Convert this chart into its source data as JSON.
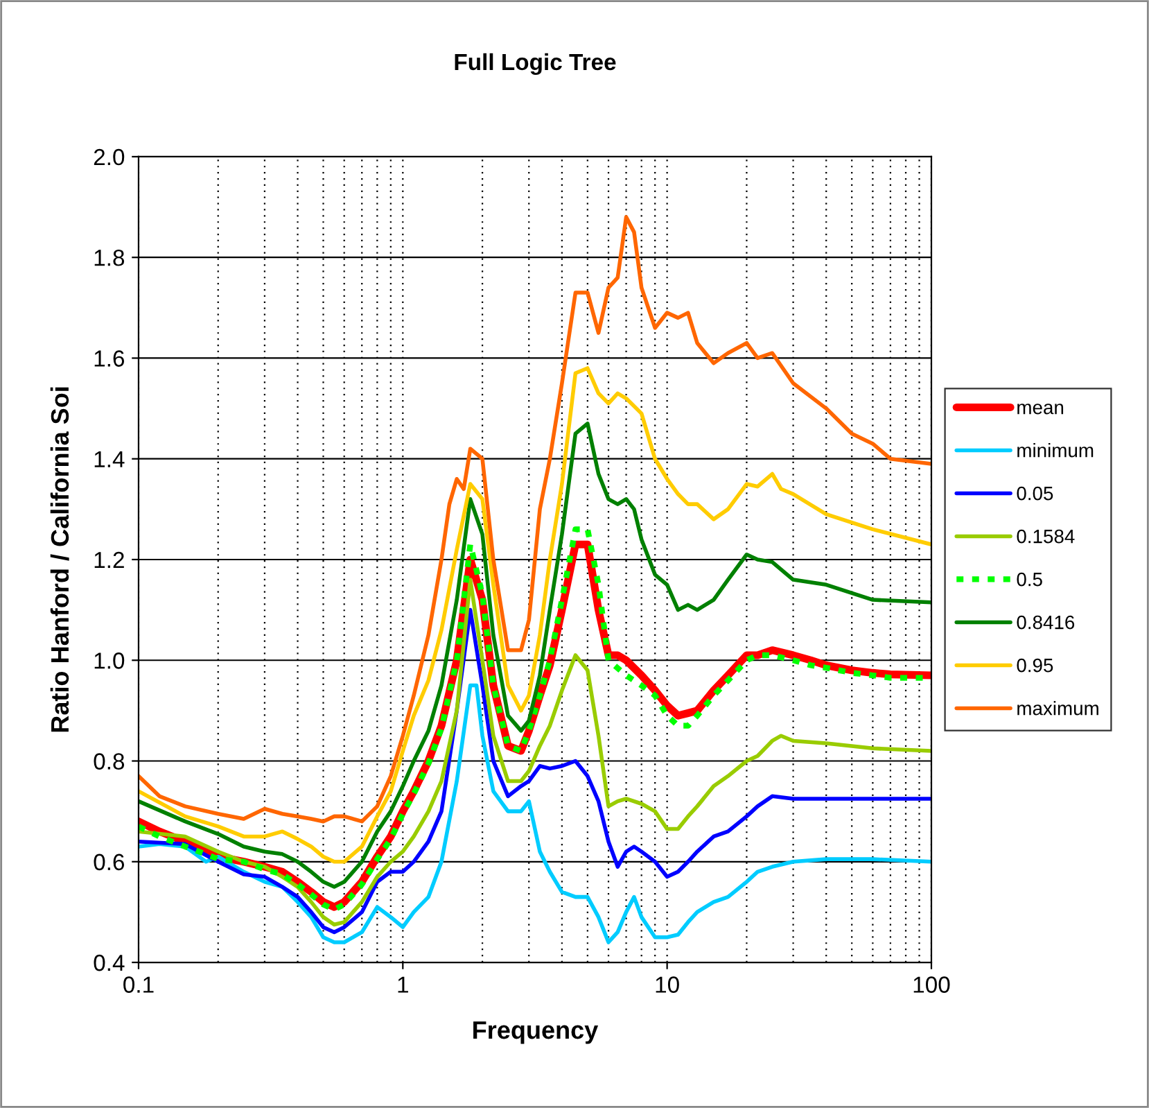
{
  "chart_data": {
    "type": "line",
    "title": "Full Logic Tree",
    "xlabel": "Frequency",
    "ylabel": "Ratio Hanford / California Soi",
    "log": "x",
    "xlim": [
      0.1,
      100
    ],
    "xticks": [
      0.1,
      1,
      10,
      100
    ],
    "ylim": [
      0.4,
      2.0
    ],
    "yticks": [
      0.4,
      0.6,
      0.8,
      {
        "value": 1,
        "label": "1.0"
      },
      1.2,
      1.4,
      1.6,
      1.8,
      {
        "value": 2,
        "label": "2.0"
      }
    ],
    "grid": true,
    "legend": "right",
    "marker": "none",
    "series": [
      {
        "name": "mean",
        "color": "#ff0000",
        "line_style": "solid",
        "x": [
          0.1,
          0.12,
          0.15,
          0.18,
          0.2,
          0.25,
          0.3,
          0.35,
          0.4,
          0.45,
          0.5,
          0.55,
          0.6,
          0.7,
          0.8,
          0.9,
          1.0,
          1.1,
          1.25,
          1.4,
          1.6,
          1.8,
          2.0,
          2.2,
          2.5,
          2.8,
          3.0,
          3.3,
          3.6,
          4.0,
          4.5,
          5.0,
          5.5,
          6.0,
          6.5,
          7,
          8,
          9,
          10,
          11,
          12,
          13,
          15,
          17,
          20,
          22,
          25,
          30,
          35,
          40,
          50,
          60,
          70,
          100
        ],
        "values": [
          0.68,
          0.66,
          0.64,
          0.62,
          0.61,
          0.6,
          0.59,
          0.58,
          0.56,
          0.54,
          0.52,
          0.51,
          0.52,
          0.56,
          0.61,
          0.65,
          0.7,
          0.74,
          0.8,
          0.87,
          1.0,
          1.2,
          1.12,
          0.95,
          0.83,
          0.82,
          0.86,
          0.93,
          0.99,
          1.1,
          1.23,
          1.23,
          1.1,
          1.01,
          1.01,
          1.0,
          0.97,
          0.94,
          0.91,
          0.89,
          0.895,
          0.9,
          0.94,
          0.97,
          1.01,
          1.01,
          1.02,
          1.01,
          1.0,
          0.99,
          0.98,
          0.975,
          0.972,
          0.97
        ]
      },
      {
        "name": "minimum",
        "color": "#00ccff",
        "line_style": "solid",
        "x": [
          0.1,
          0.12,
          0.15,
          0.18,
          0.2,
          0.25,
          0.3,
          0.35,
          0.4,
          0.45,
          0.5,
          0.55,
          0.6,
          0.7,
          0.8,
          0.9,
          1.0,
          1.1,
          1.25,
          1.4,
          1.6,
          1.8,
          1.9,
          2.0,
          2.2,
          2.5,
          2.8,
          3.0,
          3.3,
          3.6,
          4.0,
          4.5,
          5.0,
          5.5,
          6.0,
          6.5,
          7,
          7.5,
          8,
          9,
          10,
          11,
          12,
          13,
          15,
          17,
          20,
          22,
          25,
          30,
          40,
          60,
          100
        ],
        "values": [
          0.63,
          0.635,
          0.63,
          0.6,
          0.61,
          0.58,
          0.56,
          0.55,
          0.52,
          0.49,
          0.45,
          0.44,
          0.44,
          0.46,
          0.51,
          0.49,
          0.47,
          0.5,
          0.53,
          0.6,
          0.76,
          0.95,
          0.95,
          0.85,
          0.74,
          0.7,
          0.7,
          0.72,
          0.62,
          0.58,
          0.54,
          0.53,
          0.53,
          0.49,
          0.44,
          0.46,
          0.5,
          0.53,
          0.49,
          0.45,
          0.45,
          0.455,
          0.48,
          0.5,
          0.52,
          0.53,
          0.56,
          0.58,
          0.59,
          0.6,
          0.605,
          0.605,
          0.6
        ]
      },
      {
        "name": "0.05",
        "color": "#0000ff",
        "line_style": "solid",
        "x": [
          0.1,
          0.15,
          0.2,
          0.25,
          0.3,
          0.35,
          0.4,
          0.45,
          0.5,
          0.55,
          0.6,
          0.7,
          0.8,
          0.9,
          1.0,
          1.1,
          1.25,
          1.4,
          1.6,
          1.8,
          2.0,
          2.2,
          2.5,
          2.8,
          3.0,
          3.3,
          3.6,
          4.0,
          4.5,
          5.0,
          5.5,
          6.0,
          6.5,
          7,
          7.5,
          8,
          9,
          10,
          11,
          12,
          13,
          15,
          17,
          20,
          22,
          25,
          30,
          40,
          100
        ],
        "values": [
          0.64,
          0.635,
          0.6,
          0.575,
          0.57,
          0.55,
          0.53,
          0.5,
          0.47,
          0.46,
          0.47,
          0.5,
          0.56,
          0.58,
          0.58,
          0.6,
          0.64,
          0.7,
          0.9,
          1.1,
          0.95,
          0.8,
          0.73,
          0.75,
          0.76,
          0.79,
          0.785,
          0.79,
          0.8,
          0.77,
          0.72,
          0.64,
          0.59,
          0.62,
          0.63,
          0.62,
          0.6,
          0.57,
          0.58,
          0.6,
          0.62,
          0.65,
          0.66,
          0.69,
          0.71,
          0.73,
          0.725,
          0.725,
          0.725
        ]
      },
      {
        "name": "0.1584",
        "color": "#99cc00",
        "line_style": "solid",
        "x": [
          0.1,
          0.15,
          0.2,
          0.25,
          0.3,
          0.35,
          0.4,
          0.45,
          0.5,
          0.55,
          0.6,
          0.7,
          0.8,
          0.9,
          1.0,
          1.1,
          1.25,
          1.4,
          1.6,
          1.8,
          2.0,
          2.2,
          2.5,
          2.8,
          3.0,
          3.3,
          3.6,
          4.0,
          4.5,
          5.0,
          5.5,
          6.0,
          6.5,
          7,
          8,
          9,
          10,
          11,
          12,
          13,
          15,
          17,
          20,
          22,
          25,
          27,
          30,
          40,
          60,
          100
        ],
        "values": [
          0.66,
          0.65,
          0.62,
          0.6,
          0.59,
          0.57,
          0.55,
          0.52,
          0.49,
          0.475,
          0.48,
          0.52,
          0.57,
          0.6,
          0.62,
          0.65,
          0.7,
          0.76,
          0.9,
          1.16,
          1.0,
          0.85,
          0.76,
          0.76,
          0.78,
          0.83,
          0.87,
          0.94,
          1.01,
          0.98,
          0.85,
          0.71,
          0.72,
          0.725,
          0.715,
          0.7,
          0.665,
          0.665,
          0.69,
          0.71,
          0.75,
          0.77,
          0.8,
          0.81,
          0.84,
          0.85,
          0.84,
          0.835,
          0.825,
          0.82
        ]
      },
      {
        "name": "0.5",
        "color": "#00ff00",
        "line_style": "dotted",
        "x": [
          0.1,
          0.12,
          0.15,
          0.18,
          0.2,
          0.25,
          0.3,
          0.35,
          0.4,
          0.45,
          0.5,
          0.55,
          0.6,
          0.7,
          0.8,
          0.9,
          1.0,
          1.1,
          1.25,
          1.4,
          1.6,
          1.8,
          2.0,
          2.2,
          2.5,
          2.8,
          3.0,
          3.3,
          3.6,
          4.0,
          4.5,
          5.0,
          5.5,
          6.0,
          7,
          8,
          9,
          10,
          11,
          12,
          13,
          15,
          17,
          20,
          22,
          25,
          30,
          35,
          40,
          50,
          60,
          70,
          100
        ],
        "values": [
          0.67,
          0.65,
          0.63,
          0.615,
          0.605,
          0.6,
          0.585,
          0.575,
          0.555,
          0.535,
          0.515,
          0.505,
          0.515,
          0.555,
          0.605,
          0.645,
          0.695,
          0.735,
          0.795,
          0.865,
          1.0,
          1.23,
          1.13,
          0.95,
          0.83,
          0.82,
          0.86,
          0.93,
          1.0,
          1.12,
          1.26,
          1.26,
          1.15,
          1.0,
          0.97,
          0.95,
          0.93,
          0.89,
          0.87,
          0.87,
          0.89,
          0.93,
          0.96,
          1.0,
          1.01,
          1.01,
          1.0,
          0.99,
          0.985,
          0.975,
          0.97,
          0.965,
          0.965
        ]
      },
      {
        "name": "0.8416",
        "color": "#008000",
        "line_style": "solid",
        "x": [
          0.1,
          0.15,
          0.2,
          0.25,
          0.3,
          0.35,
          0.4,
          0.45,
          0.5,
          0.55,
          0.6,
          0.7,
          0.8,
          0.9,
          1.0,
          1.1,
          1.25,
          1.4,
          1.6,
          1.8,
          2.0,
          2.2,
          2.5,
          2.8,
          3.0,
          3.3,
          3.6,
          4.0,
          4.5,
          5.0,
          5.5,
          6.0,
          6.5,
          7,
          7.5,
          8,
          9,
          10,
          11,
          12,
          13,
          15,
          17,
          20,
          22,
          25,
          30,
          40,
          60,
          100
        ],
        "values": [
          0.72,
          0.68,
          0.655,
          0.63,
          0.62,
          0.615,
          0.6,
          0.58,
          0.56,
          0.55,
          0.56,
          0.6,
          0.66,
          0.7,
          0.75,
          0.8,
          0.86,
          0.95,
          1.12,
          1.32,
          1.25,
          1.05,
          0.89,
          0.86,
          0.88,
          0.97,
          1.1,
          1.25,
          1.45,
          1.47,
          1.37,
          1.32,
          1.31,
          1.32,
          1.3,
          1.24,
          1.17,
          1.15,
          1.1,
          1.11,
          1.1,
          1.12,
          1.16,
          1.21,
          1.2,
          1.195,
          1.16,
          1.15,
          1.12,
          1.115
        ]
      },
      {
        "name": "0.95",
        "color": "#ffcc00",
        "line_style": "solid",
        "x": [
          0.1,
          0.15,
          0.2,
          0.25,
          0.3,
          0.35,
          0.4,
          0.45,
          0.5,
          0.55,
          0.6,
          0.7,
          0.8,
          0.9,
          1.0,
          1.1,
          1.25,
          1.4,
          1.6,
          1.8,
          2.0,
          2.2,
          2.5,
          2.8,
          3.0,
          3.3,
          3.6,
          4.0,
          4.5,
          5.0,
          5.5,
          6.0,
          6.5,
          7,
          8,
          9,
          10,
          11,
          12,
          13,
          15,
          17,
          20,
          22,
          25,
          27,
          30,
          40,
          60,
          100
        ],
        "values": [
          0.74,
          0.69,
          0.67,
          0.65,
          0.65,
          0.66,
          0.645,
          0.63,
          0.61,
          0.6,
          0.6,
          0.63,
          0.69,
          0.74,
          0.82,
          0.89,
          0.96,
          1.06,
          1.22,
          1.35,
          1.32,
          1.15,
          0.95,
          0.9,
          0.93,
          1.05,
          1.2,
          1.35,
          1.57,
          1.58,
          1.53,
          1.51,
          1.53,
          1.52,
          1.49,
          1.4,
          1.36,
          1.33,
          1.31,
          1.31,
          1.28,
          1.3,
          1.35,
          1.345,
          1.37,
          1.34,
          1.33,
          1.29,
          1.26,
          1.23
        ]
      },
      {
        "name": "maximum",
        "color": "#ff6600",
        "line_style": "solid",
        "x": [
          0.1,
          0.12,
          0.15,
          0.2,
          0.25,
          0.3,
          0.35,
          0.4,
          0.45,
          0.5,
          0.55,
          0.6,
          0.7,
          0.8,
          0.9,
          1.0,
          1.1,
          1.25,
          1.4,
          1.5,
          1.6,
          1.7,
          1.8,
          2.0,
          2.2,
          2.5,
          2.8,
          3.0,
          3.3,
          3.6,
          4.0,
          4.5,
          5.0,
          5.5,
          6.0,
          6.5,
          7,
          7.5,
          8,
          9,
          10,
          11,
          12,
          13,
          15,
          17,
          20,
          22,
          25,
          30,
          40,
          50,
          60,
          70,
          100
        ],
        "values": [
          0.77,
          0.73,
          0.71,
          0.695,
          0.685,
          0.705,
          0.695,
          0.69,
          0.685,
          0.68,
          0.69,
          0.69,
          0.68,
          0.71,
          0.77,
          0.85,
          0.93,
          1.05,
          1.2,
          1.31,
          1.36,
          1.34,
          1.42,
          1.4,
          1.2,
          1.02,
          1.02,
          1.08,
          1.3,
          1.4,
          1.55,
          1.73,
          1.73,
          1.65,
          1.74,
          1.76,
          1.88,
          1.85,
          1.74,
          1.66,
          1.69,
          1.68,
          1.69,
          1.63,
          1.59,
          1.61,
          1.63,
          1.6,
          1.61,
          1.55,
          1.5,
          1.45,
          1.43,
          1.4,
          1.39
        ]
      }
    ]
  }
}
